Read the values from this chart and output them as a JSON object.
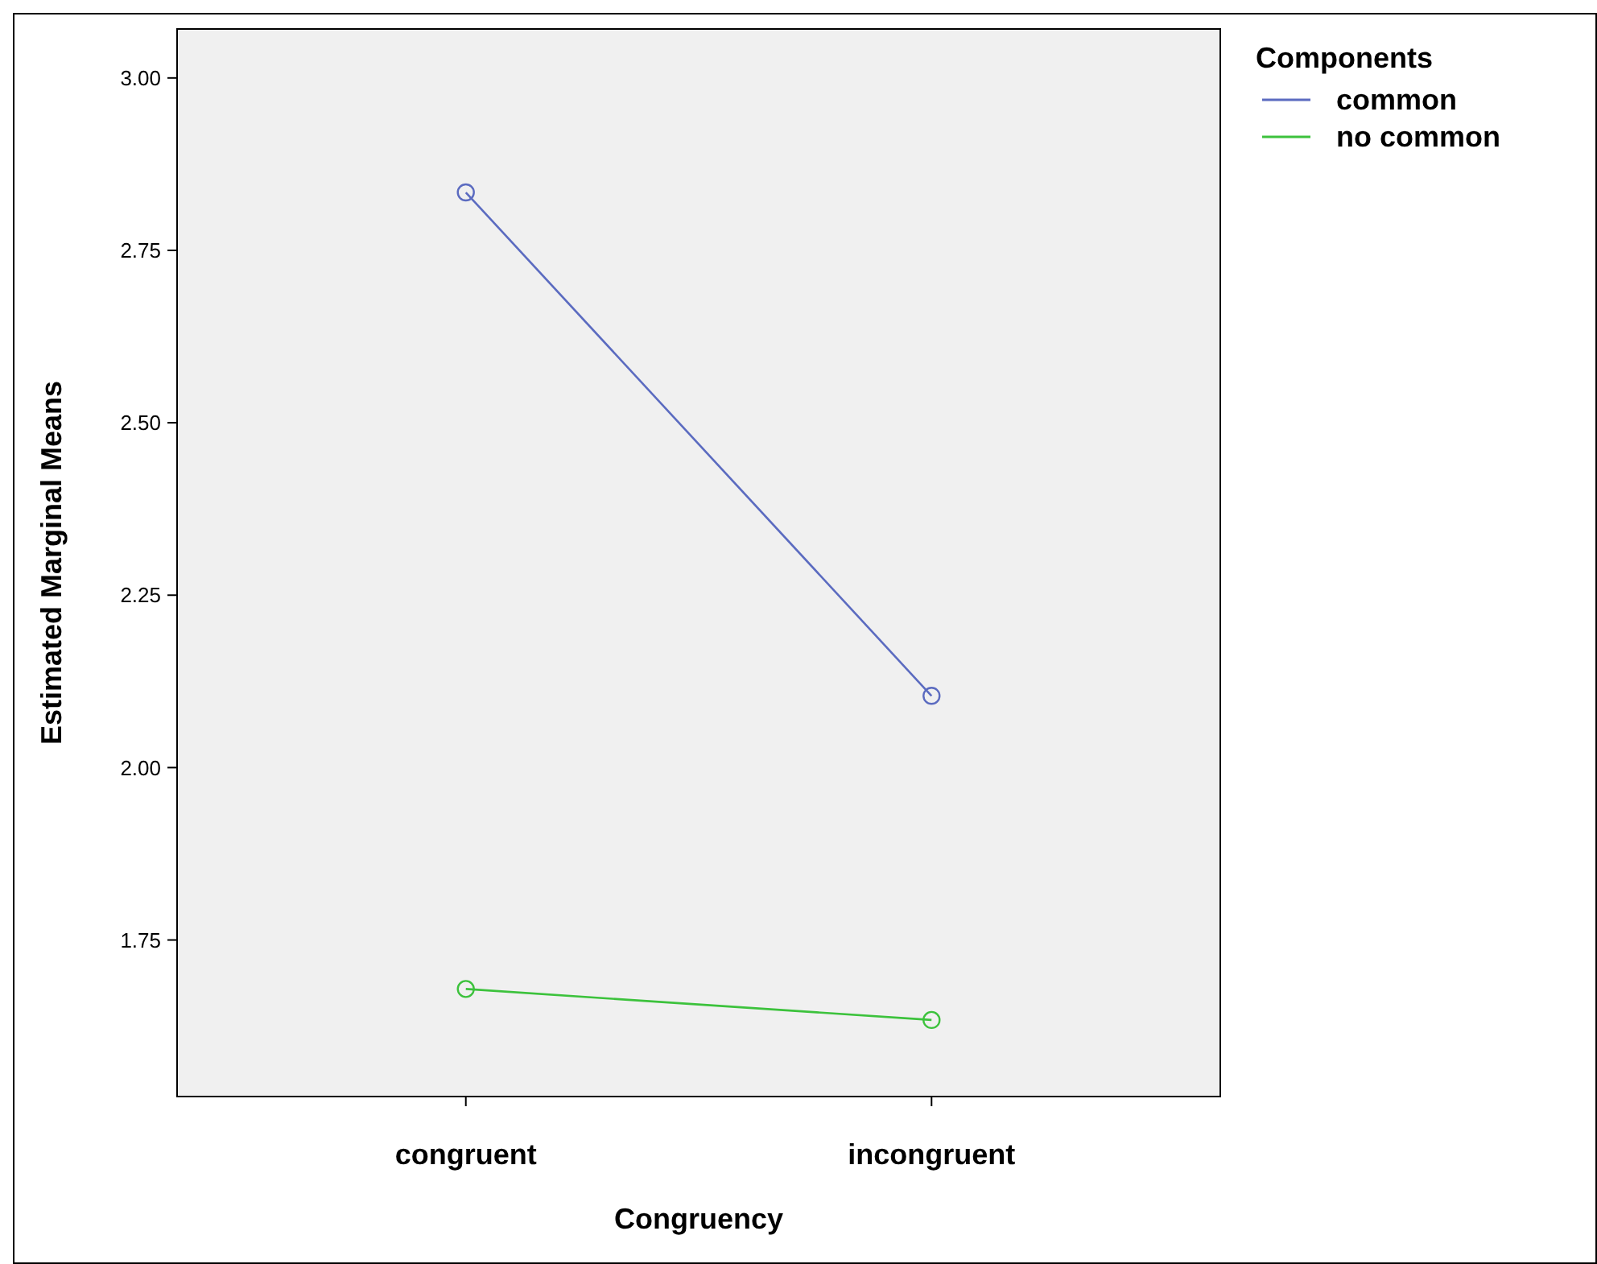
{
  "chart_data": {
    "type": "line",
    "xlabel": "Congruency",
    "ylabel": "Estimated Marginal Means",
    "legend_title": "Components",
    "categories": [
      "congruent",
      "incongruent"
    ],
    "series": [
      {
        "name": "common",
        "color": "#5b6bc0",
        "values": [
          2.834,
          2.104
        ]
      },
      {
        "name": "no common",
        "color": "#3cc23c",
        "values": [
          1.679,
          1.634
        ]
      }
    ],
    "ylim": [
      1.523,
      3.071
    ],
    "yticks": [
      {
        "value": 1.75,
        "label": "1.75"
      },
      {
        "value": 2.0,
        "label": "2.00"
      },
      {
        "value": 2.25,
        "label": "2.25"
      },
      {
        "value": 2.5,
        "label": "2.50"
      },
      {
        "value": 2.75,
        "label": "2.75"
      },
      {
        "value": 3.0,
        "label": "3.00"
      }
    ],
    "grid": false,
    "legend": "top right",
    "marker": "circle",
    "line_style": "solid"
  }
}
